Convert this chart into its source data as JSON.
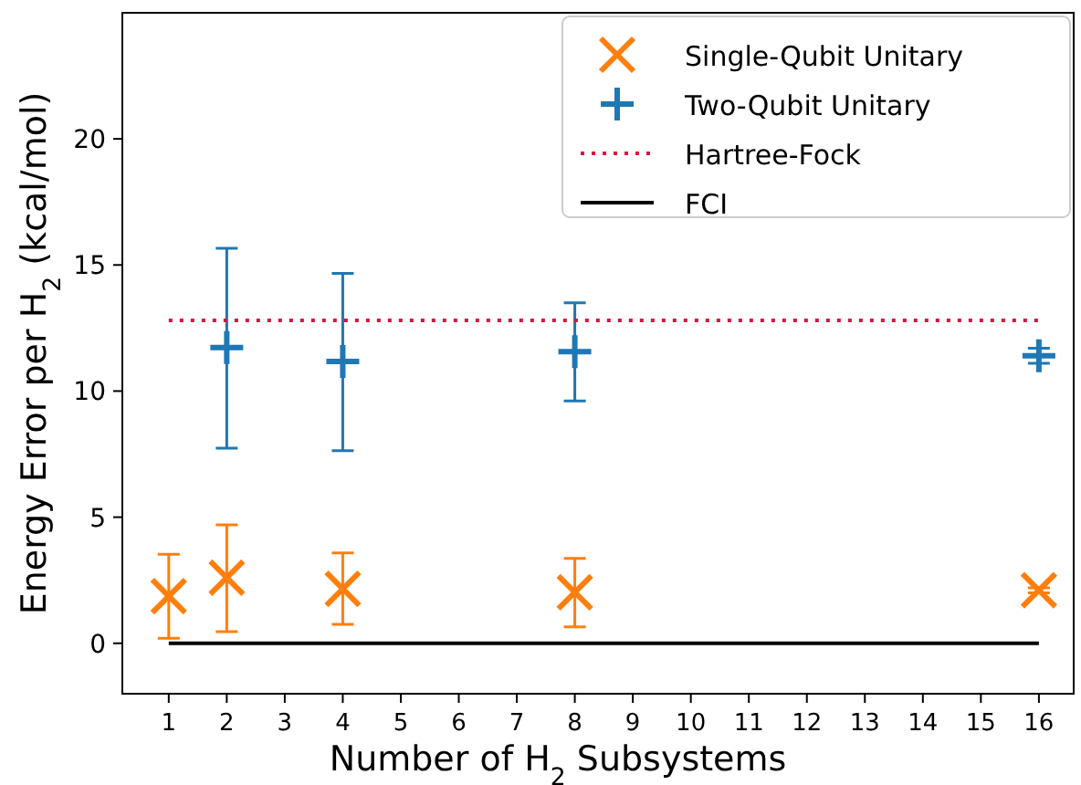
{
  "chart_data": {
    "type": "scatter",
    "xlabel": "Number of H$_{2}$ Subsystems",
    "ylabel": "Energy Error per H$_{2}$ (kcal/mol)",
    "xlim": [
      0.2,
      16.6
    ],
    "xticks": [
      1,
      2,
      3,
      4,
      5,
      6,
      7,
      8,
      9,
      10,
      11,
      12,
      13,
      14,
      15,
      16
    ],
    "ylim": [
      -2,
      25
    ],
    "yticks": [
      0,
      5,
      10,
      15,
      20
    ],
    "grid": false,
    "legend": "top right",
    "series": [
      {
        "name": "Single-Qubit Unitary",
        "color": "#ff7f0e",
        "marker": "x",
        "x": [
          1,
          2,
          4,
          8,
          16
        ],
        "values": [
          1.87,
          2.6,
          2.16,
          2.02,
          2.1
        ],
        "errors": [
          [
            0.2,
            3.53
          ],
          [
            0.46,
            4.7
          ],
          [
            0.75,
            3.58
          ],
          [
            0.65,
            3.37
          ],
          [
            2.0,
            2.2
          ]
        ]
      },
      {
        "name": "Two-Qubit Unitary",
        "color": "#1f77b4",
        "marker": "cross",
        "x": [
          2,
          4,
          8,
          16
        ],
        "values": [
          11.73,
          11.17,
          11.56,
          11.4
        ],
        "errors": [
          [
            7.74,
            15.66
          ],
          [
            7.64,
            14.67
          ],
          [
            9.61,
            13.5
          ],
          [
            11.1,
            11.7
          ]
        ]
      },
      {
        "name": "Hartree-Fock",
        "type": "line",
        "color": "#dc143c",
        "marker": "none",
        "line_style": "dotted",
        "x": [
          1,
          16
        ],
        "values": [
          12.8,
          12.8
        ]
      },
      {
        "name": "FCI",
        "type": "line",
        "color": "#000000",
        "marker": "none",
        "line_style": "solid",
        "x": [
          1,
          16
        ],
        "values": [
          0,
          0
        ]
      }
    ]
  }
}
